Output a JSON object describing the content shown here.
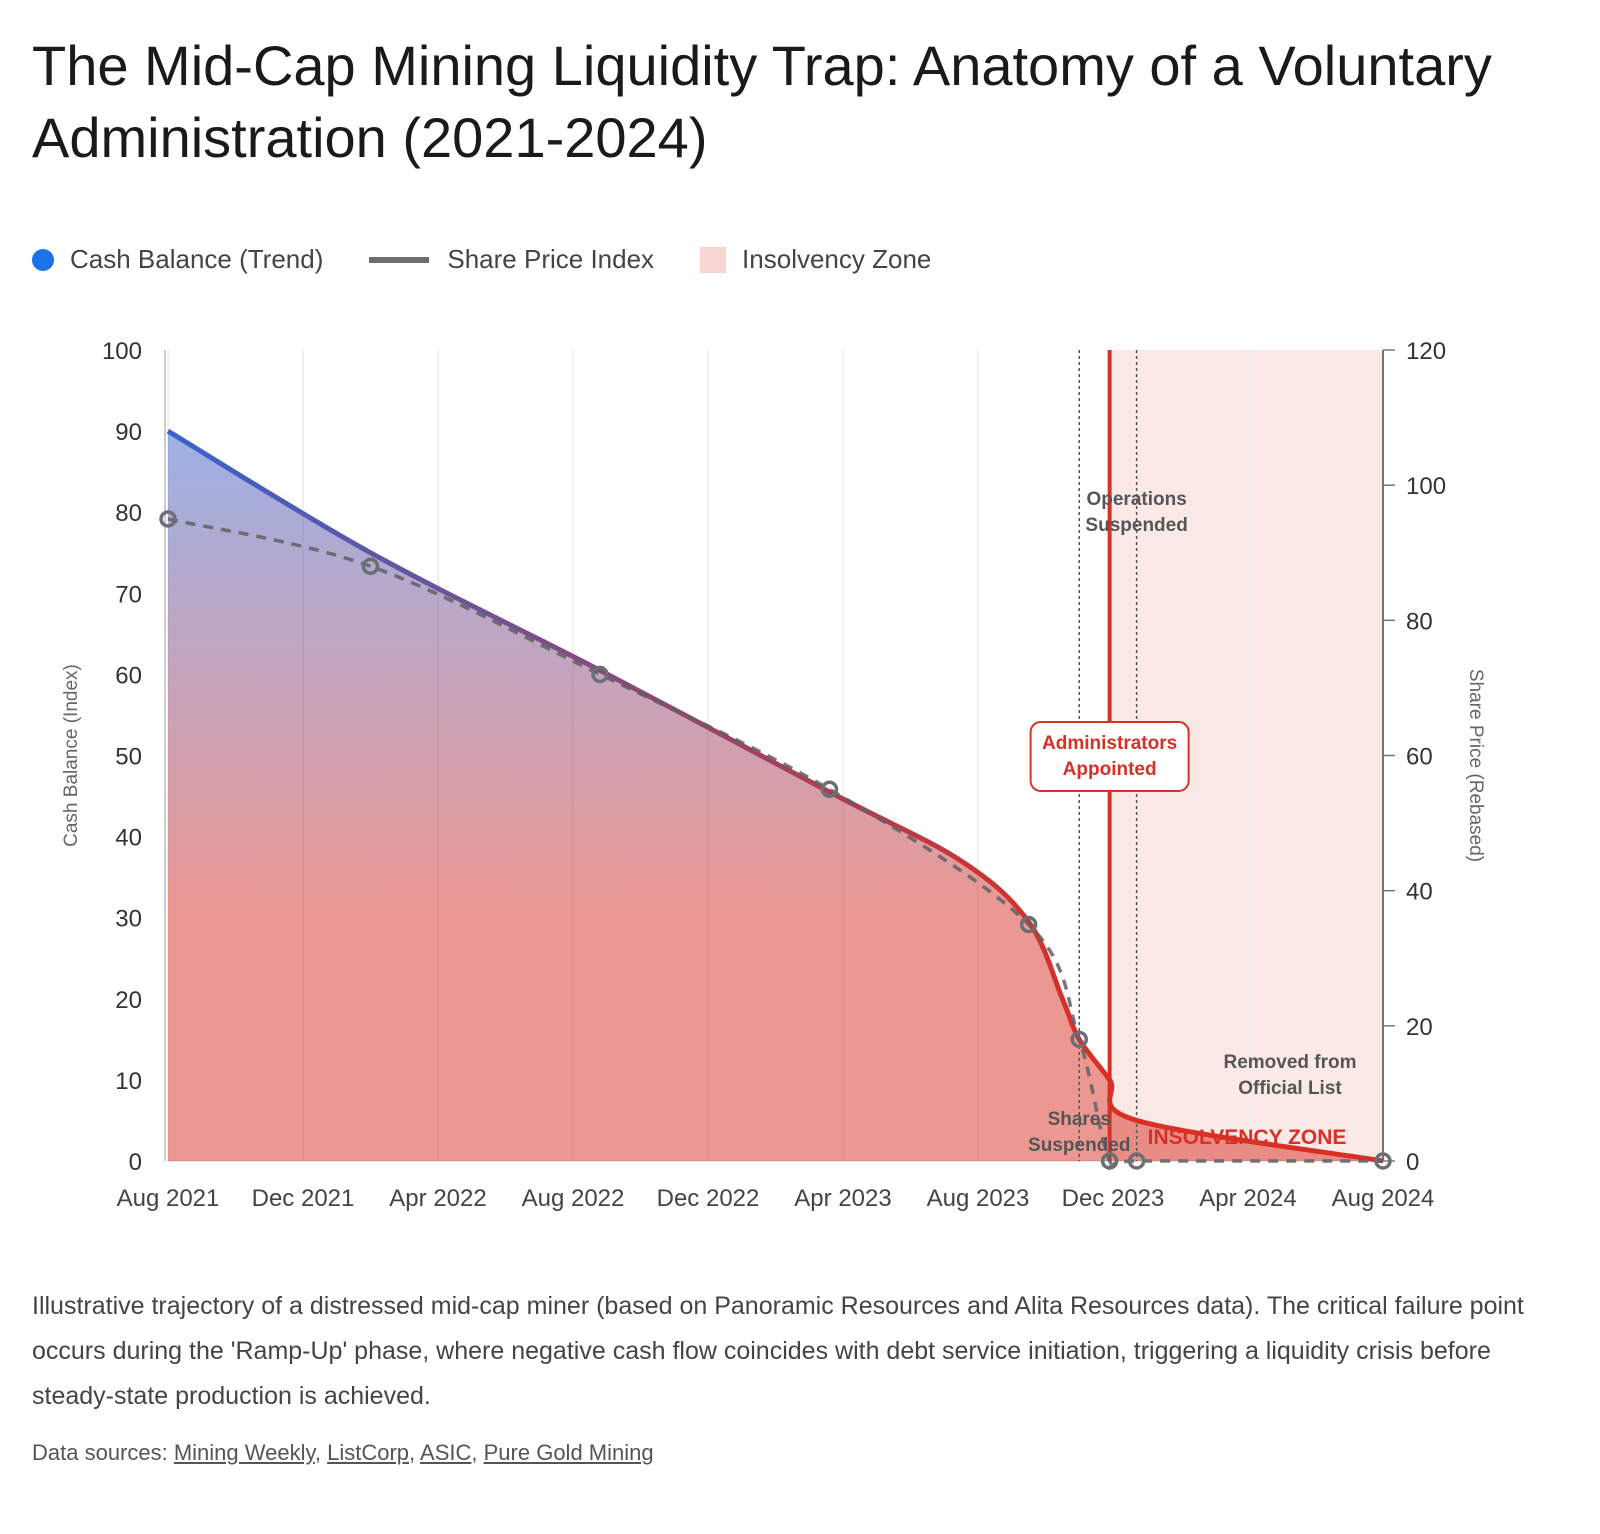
{
  "title": "The Mid-Cap Mining Liquidity Trap: Anatomy of a Voluntary Administration (2021-2024)",
  "legend": [
    {
      "label": "Cash Balance (Trend)",
      "color": "#1a73e8"
    },
    {
      "label": "Share Price Index",
      "color": "#6b6f73"
    },
    {
      "label": "Insolvency Zone",
      "color": "#f8d6d4"
    }
  ],
  "chart_data": {
    "type": "line",
    "x_unit": "months since Aug 2021",
    "xlim": [
      0,
      36
    ],
    "x_ticks": [
      {
        "m": 0,
        "label": "Aug 2021"
      },
      {
        "m": 4,
        "label": "Dec 2021"
      },
      {
        "m": 8,
        "label": "Apr 2022"
      },
      {
        "m": 12,
        "label": "Aug 2022"
      },
      {
        "m": 16,
        "label": "Dec 2022"
      },
      {
        "m": 20,
        "label": "Apr 2023"
      },
      {
        "m": 24,
        "label": "Aug 2023"
      },
      {
        "m": 28,
        "label": "Dec 2023"
      },
      {
        "m": 32,
        "label": "Apr 2024"
      },
      {
        "m": 36,
        "label": "Aug 2024"
      }
    ],
    "y_left": {
      "label": "Cash Balance (Index)",
      "lim": [
        0,
        100
      ],
      "ticks": [
        "0",
        "10",
        "20",
        "30",
        "40",
        "50",
        "60",
        "70",
        "80",
        "90",
        "100"
      ]
    },
    "y_right": {
      "label": "Share Price (Rebased)",
      "lim": [
        0,
        120
      ],
      "ticks": [
        "0",
        "20",
        "40",
        "60",
        "80",
        "100",
        "120"
      ]
    },
    "series": [
      {
        "name": "Cash Balance (Trend)",
        "axis": "left",
        "x": [
          0,
          6,
          12.8,
          19.6,
          23.5,
          25.5,
          26.5,
          27,
          27.9,
          28.7,
          36
        ],
        "y": [
          90,
          75,
          60.5,
          45.5,
          37,
          29.5,
          20,
          15,
          10,
          5,
          0
        ]
      },
      {
        "name": "Share Price Index",
        "axis": "right",
        "x": [
          0,
          6,
          12.8,
          19.6,
          25.5,
          27,
          27.9,
          28.7,
          36
        ],
        "y": [
          95,
          88,
          72,
          55,
          35,
          18,
          0,
          0,
          0
        ]
      }
    ],
    "insolvency_zone": {
      "from": 27.9,
      "to": 36,
      "label": "INSOLVENCY ZONE"
    },
    "events": [
      {
        "m": 27,
        "label_lines": [
          "Shares",
          "Suspended"
        ],
        "style": "dotted"
      },
      {
        "m": 27.9,
        "label_lines": [
          "Administrators",
          "Appointed"
        ],
        "style": "solid"
      },
      {
        "m": 28.7,
        "label_lines": [
          "Operations",
          "Suspended"
        ],
        "style": "dotted"
      },
      {
        "m": 36,
        "label_lines": [
          "Removed from",
          "Official List"
        ],
        "style": "none"
      }
    ],
    "colors": {
      "start": "#3a62cc",
      "end": "#d93025",
      "zone": "#fbe9e7",
      "share": "#6b6f73"
    }
  },
  "caption": "Illustrative trajectory of a distressed mid-cap miner (based on Panoramic Resources and Alita Resources data). The critical failure point occurs during the 'Ramp-Up' phase, where negative cash flow coincides with debt service initiation, triggering a liquidity crisis before steady-state production is achieved.",
  "sources": {
    "prefix": "Data sources: ",
    "links": [
      "Mining Weekly",
      "ListCorp",
      "ASIC",
      "Pure Gold Mining"
    ]
  }
}
